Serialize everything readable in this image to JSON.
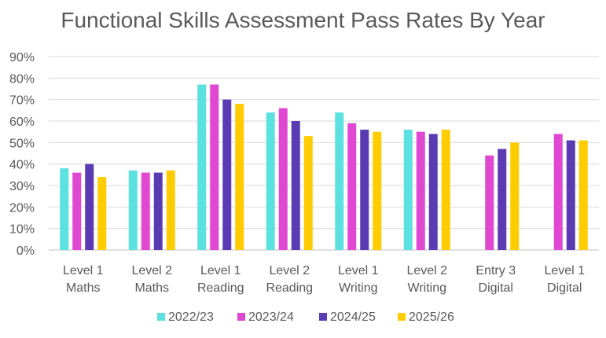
{
  "chart_data": {
    "type": "bar",
    "title": "Functional Skills Assessment Pass Rates By Year",
    "categories": [
      [
        "Level 1",
        "Maths"
      ],
      [
        "Level 2",
        "Maths"
      ],
      [
        "Level 1",
        "Reading"
      ],
      [
        "Level 2",
        "Reading"
      ],
      [
        "Level 1",
        "Writing"
      ],
      [
        "Level 2",
        "Writing"
      ],
      [
        "Entry 3",
        "Digital"
      ],
      [
        "Level 1",
        "Digital"
      ]
    ],
    "series": [
      {
        "name": "2022/23",
        "color": "#5ce1e1",
        "values": [
          38,
          37,
          77,
          64,
          64,
          56,
          null,
          null
        ]
      },
      {
        "name": "2023/24",
        "color": "#e048d2",
        "values": [
          36,
          36,
          77,
          66,
          59,
          55,
          44,
          54
        ]
      },
      {
        "name": "2024/25",
        "color": "#5a3bb4",
        "values": [
          40,
          36,
          70,
          60,
          56,
          54,
          47,
          51
        ]
      },
      {
        "name": "2025/26",
        "color": "#ffcc00",
        "values": [
          34,
          37,
          68,
          53,
          55,
          56,
          50,
          51
        ]
      }
    ],
    "yticks": [
      "0%",
      "10%",
      "20%",
      "30%",
      "40%",
      "50%",
      "60%",
      "70%",
      "80%",
      "90%"
    ],
    "ylim": [
      0,
      90
    ],
    "grid": true,
    "legend": "bottom"
  }
}
